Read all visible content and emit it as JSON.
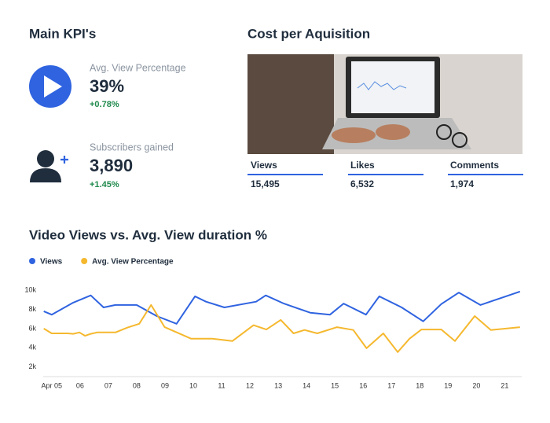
{
  "kpi": {
    "title": "Main KPI's",
    "items": [
      {
        "label": "Avg. View Percentage",
        "value": "39%",
        "change": "+0.78%"
      },
      {
        "label": "Subscribers gained",
        "value": "3,890",
        "change": "+1.45%"
      }
    ]
  },
  "cost": {
    "title": "Cost per Aquisition",
    "metrics": [
      {
        "label": "Views",
        "value": "15,495"
      },
      {
        "label": "Likes",
        "value": "6,532"
      },
      {
        "label": "Comments",
        "value": "1,974"
      }
    ]
  },
  "chart_data": {
    "type": "line",
    "title": "Video Views vs. Avg. View duration %",
    "xlim": [
      4.7,
      21.6
    ],
    "xticks": [
      {
        "value": 5,
        "label": "Apr 05"
      },
      {
        "value": 6,
        "label": "06"
      },
      {
        "value": 7,
        "label": "07"
      },
      {
        "value": 8,
        "label": "08"
      },
      {
        "value": 9,
        "label": "09"
      },
      {
        "value": 10,
        "label": "10"
      },
      {
        "value": 11,
        "label": "11"
      },
      {
        "value": 12,
        "label": "12"
      },
      {
        "value": 13,
        "label": "13"
      },
      {
        "value": 14,
        "label": "14"
      },
      {
        "value": 15,
        "label": "15"
      },
      {
        "value": 16,
        "label": "16"
      },
      {
        "value": 17,
        "label": "17"
      },
      {
        "value": 18,
        "label": "18"
      },
      {
        "value": 19,
        "label": "19"
      },
      {
        "value": 20,
        "label": "20"
      },
      {
        "value": 21,
        "label": "21"
      }
    ],
    "ylim": [
      1000,
      10000
    ],
    "yticks": [
      {
        "value": 2000,
        "label": "2k"
      },
      {
        "value": 4000,
        "label": "4k"
      },
      {
        "value": 6000,
        "label": "6k"
      },
      {
        "value": 8000,
        "label": "8k"
      },
      {
        "value": 10000,
        "label": "10k"
      }
    ],
    "grid": false,
    "series": [
      {
        "name": "Views",
        "color": "#2f63e0",
        "x": [
          4.72,
          5,
          5.76,
          6.38,
          6.83,
          7.25,
          8.0,
          8.71,
          9.41,
          10.06,
          10.45,
          11.1,
          12.22,
          12.56,
          13.2,
          14.13,
          14.83,
          15.31,
          16.1,
          16.57,
          17.36,
          18.12,
          18.76,
          19.38,
          20.14,
          21.54
        ],
        "values": [
          7800,
          7450,
          8700,
          9450,
          8200,
          8450,
          8450,
          7300,
          6500,
          9350,
          8800,
          8200,
          8800,
          9450,
          8600,
          7650,
          7450,
          8600,
          7450,
          9350,
          8200,
          6750,
          8550,
          9750,
          8450,
          9850
        ]
      },
      {
        "name": "Avg. View Percentage",
        "color": "#f5b82e",
        "x": [
          4.72,
          5,
          5.56,
          5.76,
          5.98,
          6.18,
          6.38,
          6.6,
          7.25,
          7.67,
          8.09,
          8.51,
          8.99,
          9.92,
          10.67,
          11.38,
          12.13,
          12.58,
          13.09,
          13.54,
          13.93,
          14.38,
          15.08,
          15.65,
          16.12,
          16.71,
          17.22,
          17.64,
          18.06,
          18.76,
          19.24,
          19.94,
          20.51,
          21.54
        ],
        "values": [
          6000,
          5500,
          5500,
          5450,
          5600,
          5250,
          5450,
          5600,
          5600,
          6100,
          6500,
          8450,
          6150,
          4950,
          4950,
          4700,
          6350,
          5900,
          6900,
          5500,
          5850,
          5500,
          6150,
          5850,
          3950,
          5500,
          3550,
          4950,
          5900,
          5900,
          4700,
          7300,
          5850,
          6150
        ]
      }
    ]
  }
}
